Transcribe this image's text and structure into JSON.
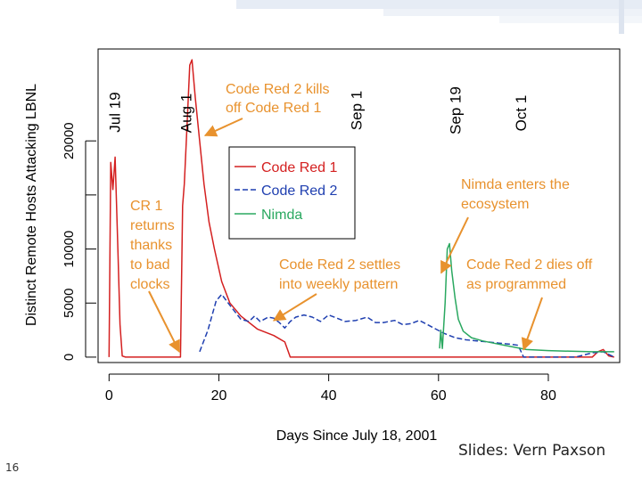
{
  "slide": {
    "number": "16",
    "credit": "Slides: Vern Paxson"
  },
  "colors": {
    "code_red_1": "#d42020",
    "code_red_2": "#1f3fb0",
    "nimda": "#2aa860",
    "annotation": "#e8922e",
    "axis": "#000000"
  },
  "chart_data": {
    "type": "line",
    "title": "",
    "xlabel": "Days Since July 18, 2001",
    "ylabel": "Distinct Remote Hosts Attacking LBNL",
    "xlim": [
      -2,
      93
    ],
    "ylim": [
      -500,
      28500
    ],
    "xticks": [
      0,
      20,
      40,
      60,
      80
    ],
    "xtick_labels": [
      "0",
      "20",
      "40",
      "60",
      "80"
    ],
    "yticks": [
      0,
      5000,
      10000,
      15000,
      20000
    ],
    "ytick_labels": [
      "0",
      "5000",
      "10000",
      "",
      "20000"
    ],
    "date_markers": [
      {
        "label": "Jul 19",
        "x": 1
      },
      {
        "label": "Aug 1",
        "x": 14
      },
      {
        "label": "Sep 1",
        "x": 45
      },
      {
        "label": "Sep 19",
        "x": 63
      },
      {
        "label": "Oct 1",
        "x": 75
      }
    ],
    "legend": {
      "placement": "upper-center"
    },
    "series": [
      {
        "name": "Code Red 1",
        "color": "#d42020",
        "dash": "solid",
        "points": [
          [
            0,
            0
          ],
          [
            0.3,
            18000
          ],
          [
            0.7,
            15500
          ],
          [
            1.1,
            18500
          ],
          [
            1.6,
            10000
          ],
          [
            2.0,
            3000
          ],
          [
            2.4,
            100
          ],
          [
            3,
            0
          ],
          [
            13.0,
            0
          ],
          [
            13.4,
            14000
          ],
          [
            13.7,
            16000
          ],
          [
            14.2,
            21500
          ],
          [
            14.7,
            27000
          ],
          [
            15.1,
            27500
          ],
          [
            15.7,
            24000
          ],
          [
            16.5,
            20000
          ],
          [
            17.3,
            16000
          ],
          [
            18.2,
            12500
          ],
          [
            19.2,
            10000
          ],
          [
            20.5,
            7000
          ],
          [
            22,
            5000
          ],
          [
            24,
            3800
          ],
          [
            27,
            2600
          ],
          [
            30,
            2000
          ],
          [
            32,
            1400
          ],
          [
            33,
            0
          ],
          [
            88,
            0
          ],
          [
            89,
            500
          ],
          [
            90,
            700
          ],
          [
            91,
            100
          ],
          [
            92,
            0
          ]
        ]
      },
      {
        "name": "Code Red 2",
        "color": "#1f3fb0",
        "dash": "dashed",
        "points": [
          [
            16.5,
            500
          ],
          [
            18,
            2500
          ],
          [
            19.5,
            5200
          ],
          [
            20.5,
            5800
          ],
          [
            22,
            4800
          ],
          [
            24,
            3500
          ],
          [
            25.5,
            3300
          ],
          [
            26.5,
            3800
          ],
          [
            27.5,
            3300
          ],
          [
            29,
            3700
          ],
          [
            30,
            3600
          ],
          [
            31,
            3200
          ],
          [
            32,
            2700
          ],
          [
            33,
            3300
          ],
          [
            34,
            3700
          ],
          [
            35.5,
            3900
          ],
          [
            37,
            3700
          ],
          [
            38.5,
            3300
          ],
          [
            40,
            3900
          ],
          [
            41.5,
            3600
          ],
          [
            43,
            3300
          ],
          [
            45,
            3400
          ],
          [
            47,
            3700
          ],
          [
            48.5,
            3200
          ],
          [
            50,
            3200
          ],
          [
            52,
            3400
          ],
          [
            53.5,
            3000
          ],
          [
            55,
            3100
          ],
          [
            56.5,
            3400
          ],
          [
            58,
            3000
          ],
          [
            59.5,
            2600
          ],
          [
            61,
            2200
          ],
          [
            63,
            1800
          ],
          [
            65,
            1600
          ],
          [
            67,
            1500
          ],
          [
            69,
            1400
          ],
          [
            71,
            1300
          ],
          [
            73,
            1200
          ],
          [
            74.5,
            1100
          ],
          [
            75.5,
            0
          ],
          [
            85,
            0
          ],
          [
            88,
            400
          ],
          [
            90,
            500
          ],
          [
            92,
            0
          ]
        ]
      },
      {
        "name": "Nimda",
        "color": "#2aa860",
        "dash": "solid",
        "points": [
          [
            60.2,
            800
          ],
          [
            60.4,
            2500
          ],
          [
            60.7,
            800
          ],
          [
            61.2,
            5000
          ],
          [
            61.6,
            10000
          ],
          [
            62.0,
            10500
          ],
          [
            62.4,
            8000
          ],
          [
            63.0,
            5500
          ],
          [
            63.6,
            3500
          ],
          [
            64.5,
            2400
          ],
          [
            66,
            1800
          ],
          [
            68,
            1500
          ],
          [
            70,
            1300
          ],
          [
            72,
            1100
          ],
          [
            74,
            900
          ],
          [
            76,
            700
          ],
          [
            78,
            650
          ],
          [
            80,
            600
          ],
          [
            84,
            550
          ],
          [
            88,
            500
          ],
          [
            92,
            500
          ]
        ]
      }
    ],
    "annotations": [
      {
        "text": "Code Red 2 kills off Code Red 1",
        "lines": [
          "Code Red 2 kills",
          "off Code Red 1"
        ],
        "arrow_to": [
          17.5,
          20500
        ]
      },
      {
        "text": "CR 1 returns thanks to bad clocks",
        "lines": [
          "CR 1",
          "returns",
          "thanks",
          "to bad",
          "clocks"
        ],
        "arrow_to": [
          12.8,
          500
        ]
      },
      {
        "text": "Code Red 2 settles into weekly pattern",
        "lines": [
          "Code Red 2 settles",
          "into weekly pattern"
        ],
        "arrow_to": [
          30,
          3400
        ]
      },
      {
        "text": "Nimda enters the ecosystem",
        "lines": [
          "Nimda enters the",
          "ecosystem"
        ],
        "arrow_to": [
          60.5,
          7800
        ]
      },
      {
        "text": "Code Red 2 dies off as programmed",
        "lines": [
          "Code Red 2 dies off",
          "as programmed"
        ],
        "arrow_to": [
          75.5,
          700
        ]
      }
    ]
  }
}
